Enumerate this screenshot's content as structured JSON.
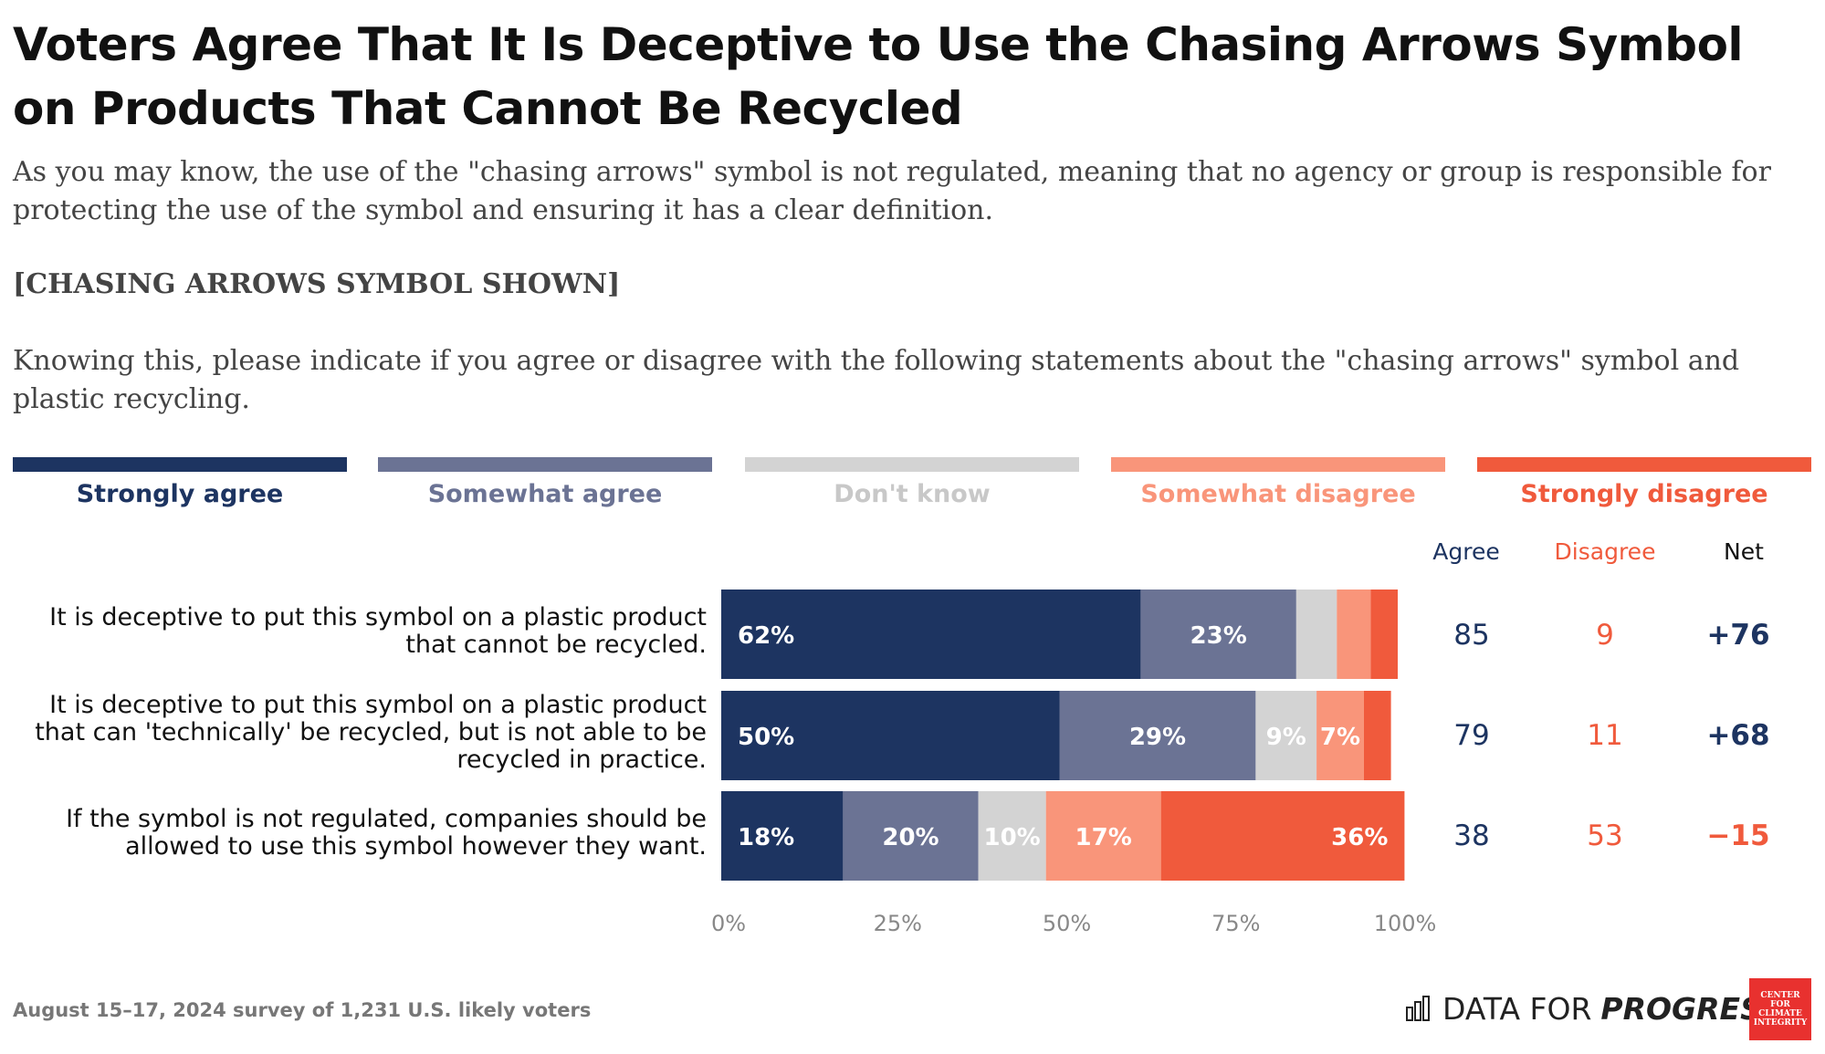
{
  "title": "Voters Agree That It Is Deceptive to Use the Chasing Arrows Symbol on Products That Cannot Be Recycled",
  "subtitle_1": "As you may know, the use of the \"chasing arrows\" symbol is not regulated, meaning that no agency or group is responsible for protecting the use of the symbol and ensuring it has a clear definition.",
  "subtitle_2": "[CHASING ARROWS SYMBOL SHOWN]",
  "subtitle_3": "Knowing this, please indicate if you agree or disagree with the following statements about the \"chasing arrows\" symbol and plastic recycling.",
  "legend": [
    {
      "label": "Strongly agree",
      "color": "#1d3461"
    },
    {
      "label": "Somewhat agree",
      "color": "#6b7394"
    },
    {
      "label": "Don't know",
      "color": "#d3d3d3"
    },
    {
      "label": "Somewhat disagree",
      "color": "#f9957a"
    },
    {
      "label": "Strongly disagree",
      "color": "#f05a3c"
    }
  ],
  "columns": {
    "agree": "Agree",
    "disagree": "Disagree",
    "net": "Net"
  },
  "chart_data": {
    "type": "bar",
    "orientation": "horizontal-stacked",
    "categories": [
      "It is deceptive to put this symbol on a plastic product that cannot be recycled.",
      "It is deceptive to put this symbol on a plastic product that can 'technically' be recycled, but is not able to be recycled in practice.",
      "If the symbol is not regulated, companies should be allowed to use this symbol however they want."
    ],
    "series": [
      {
        "name": "Strongly agree",
        "values": [
          62,
          50,
          18
        ],
        "labels": [
          "62%",
          "50%",
          "18%"
        ]
      },
      {
        "name": "Somewhat agree",
        "values": [
          23,
          29,
          20
        ],
        "labels": [
          "23%",
          "29%",
          "20%"
        ]
      },
      {
        "name": "Don't know",
        "values": [
          6,
          9,
          10
        ],
        "labels": [
          "",
          "9%",
          "10%"
        ]
      },
      {
        "name": "Somewhat disagree",
        "values": [
          5,
          7,
          17
        ],
        "labels": [
          "",
          "7%",
          "17%"
        ]
      },
      {
        "name": "Strongly disagree",
        "values": [
          4,
          4,
          36
        ],
        "labels": [
          "",
          "",
          "36%"
        ]
      }
    ],
    "xlim": [
      0,
      100
    ],
    "xticks": [
      "0%",
      "25%",
      "50%",
      "75%",
      "100%"
    ],
    "agree": [
      "85",
      "79",
      "38"
    ],
    "disagree": [
      "9",
      "11",
      "53"
    ],
    "net": [
      "+76",
      "+68",
      "−15"
    ]
  },
  "colors": {
    "agree_text": "#1d3461",
    "disagree_text": "#f05a3c",
    "net_text": "#1d3461",
    "dont_know_text": "#c8c8c8"
  },
  "footer": {
    "note": "August 15–17, 2024 survey of 1,231 U.S. likely voters",
    "brand_regular": "DATA FOR",
    "brand_bold": "PROGRESS",
    "logo_text": "CENTER FOR CLIMATE INTEGRITY"
  }
}
